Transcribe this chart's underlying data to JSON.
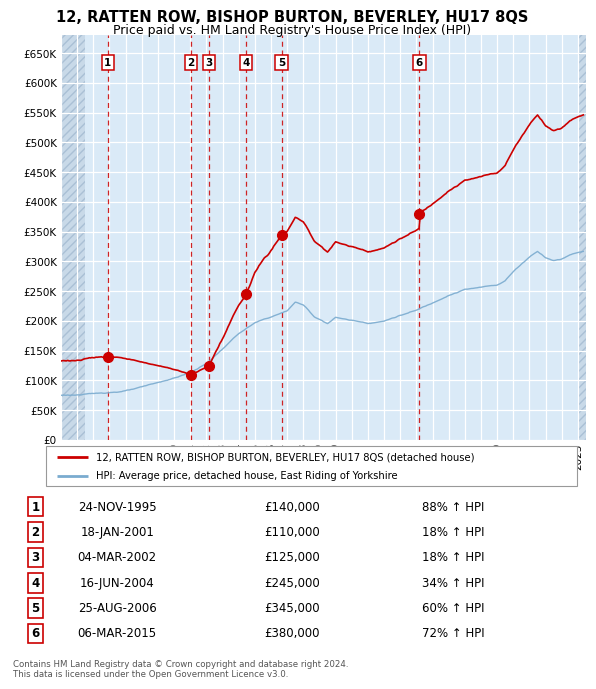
{
  "title": "12, RATTEN ROW, BISHOP BURTON, BEVERLEY, HU17 8QS",
  "subtitle": "Price paid vs. HM Land Registry's House Price Index (HPI)",
  "ylim": [
    0,
    680000
  ],
  "yticks": [
    0,
    50000,
    100000,
    150000,
    200000,
    250000,
    300000,
    350000,
    400000,
    450000,
    500000,
    550000,
    600000,
    650000
  ],
  "xlim_start": 1993.0,
  "xlim_end": 2025.5,
  "background_color": "#daeaf7",
  "sale_dates_num": [
    1995.9,
    2001.05,
    2002.17,
    2004.46,
    2006.65,
    2015.18
  ],
  "sale_prices": [
    140000,
    110000,
    125000,
    245000,
    345000,
    380000
  ],
  "sale_labels": [
    "1",
    "2",
    "3",
    "4",
    "5",
    "6"
  ],
  "property_line_color": "#cc0000",
  "hpi_line_color": "#7aabcf",
  "legend_property": "12, RATTEN ROW, BISHOP BURTON, BEVERLEY, HU17 8QS (detached house)",
  "legend_hpi": "HPI: Average price, detached house, East Riding of Yorkshire",
  "table_entries": [
    {
      "num": "1",
      "date": "24-NOV-1995",
      "price": "£140,000",
      "change": "88% ↑ HPI"
    },
    {
      "num": "2",
      "date": "18-JAN-2001",
      "price": "£110,000",
      "change": "18% ↑ HPI"
    },
    {
      "num": "3",
      "date": "04-MAR-2002",
      "price": "£125,000",
      "change": "18% ↑ HPI"
    },
    {
      "num": "4",
      "date": "16-JUN-2004",
      "price": "£245,000",
      "change": "34% ↑ HPI"
    },
    {
      "num": "5",
      "date": "25-AUG-2006",
      "price": "£345,000",
      "change": "60% ↑ HPI"
    },
    {
      "num": "6",
      "date": "06-MAR-2015",
      "price": "£380,000",
      "change": "72% ↑ HPI"
    }
  ],
  "footer": "Contains HM Land Registry data © Crown copyright and database right 2024.\nThis data is licensed under the Open Government Licence v3.0."
}
